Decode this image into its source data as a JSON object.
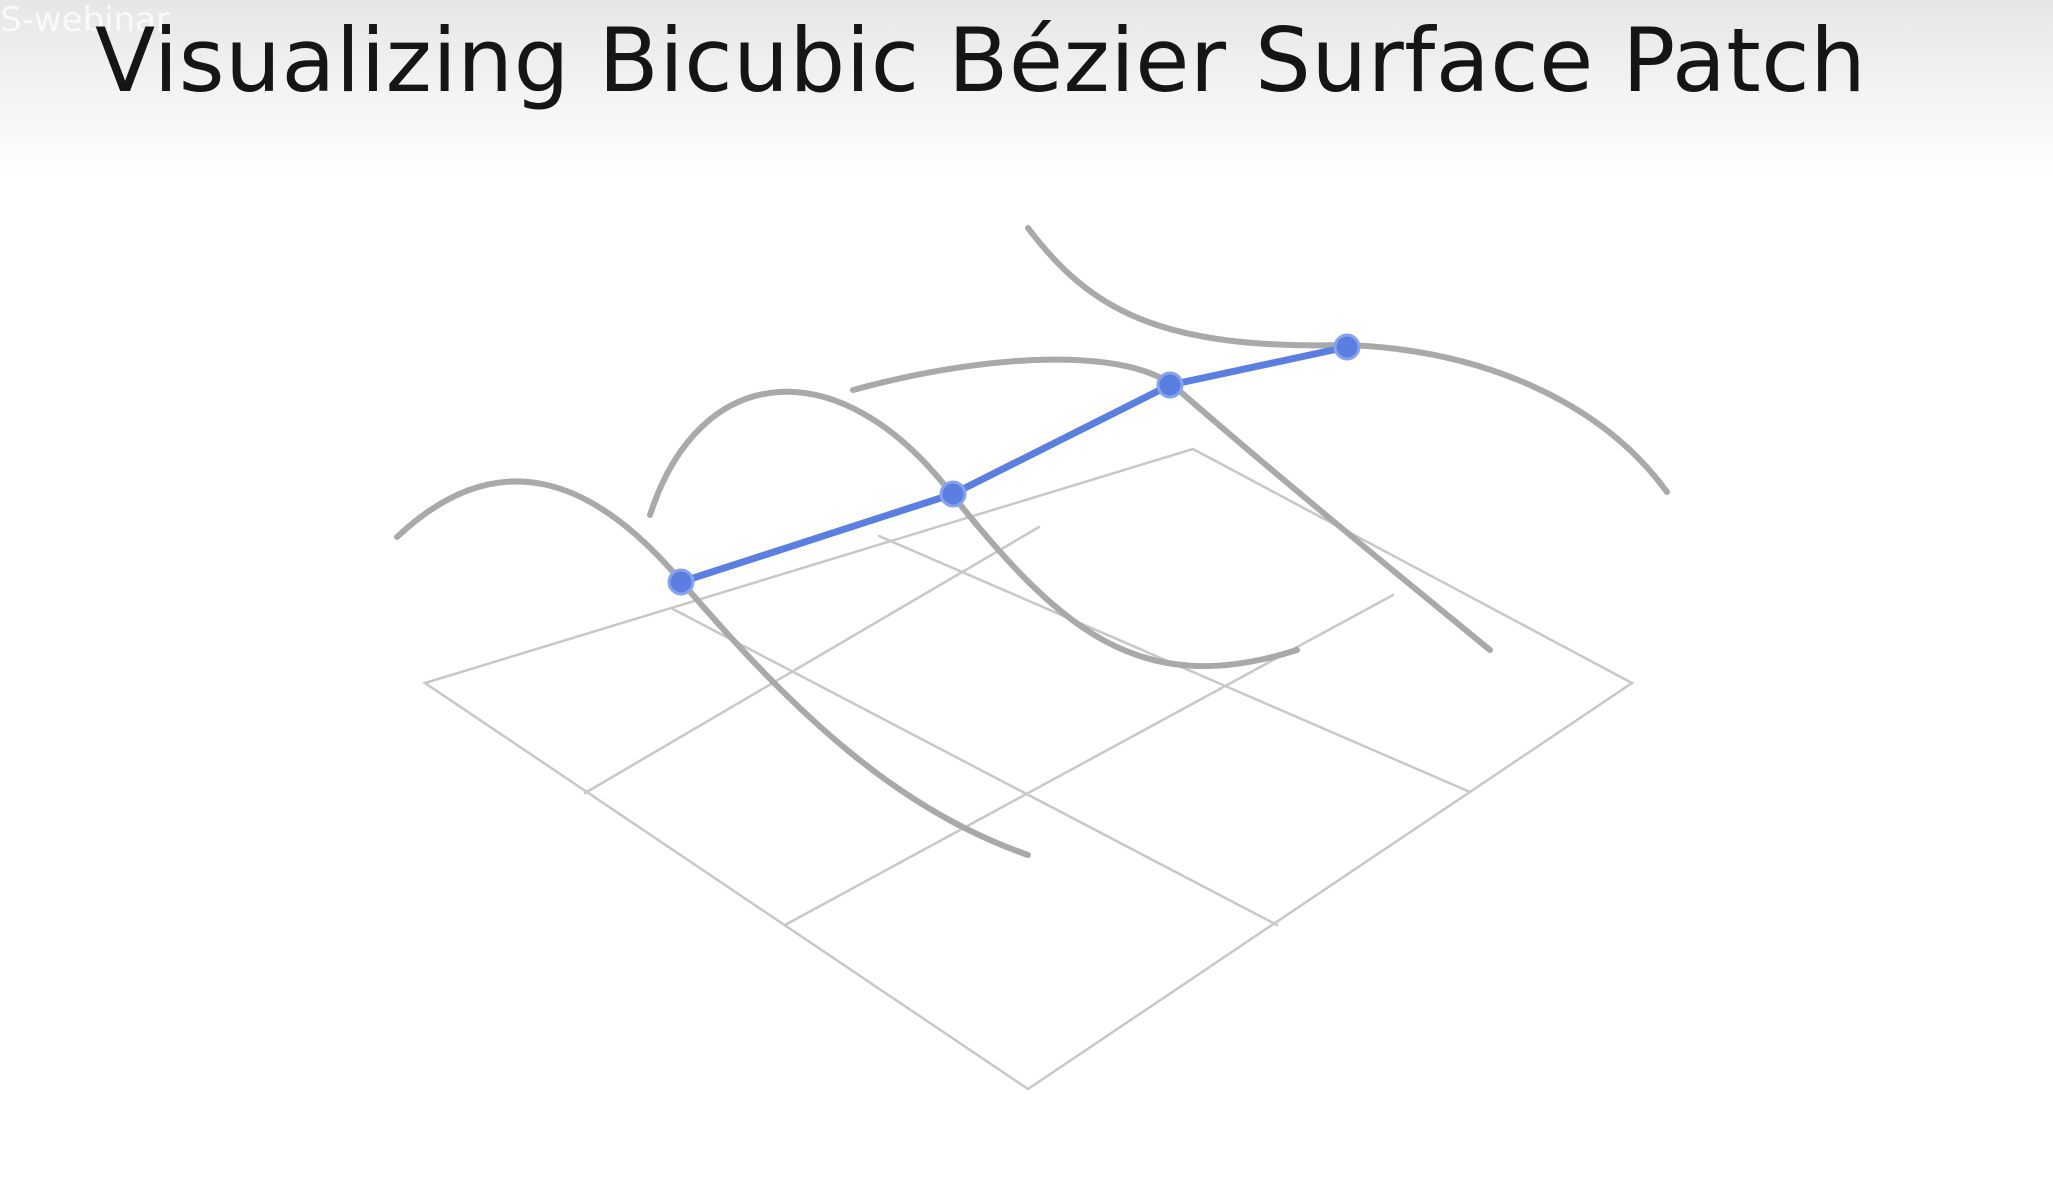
{
  "slide": {
    "title": "Visualizing Bicubic Bézier Surface Patch",
    "watermark": "S-webinar"
  },
  "diagram": {
    "grid_color": "#c8c8c8",
    "curve_color": "#a9a9a9",
    "highlight_color": "#5b7fe0",
    "control_point_color": "#5b7fe0"
  }
}
